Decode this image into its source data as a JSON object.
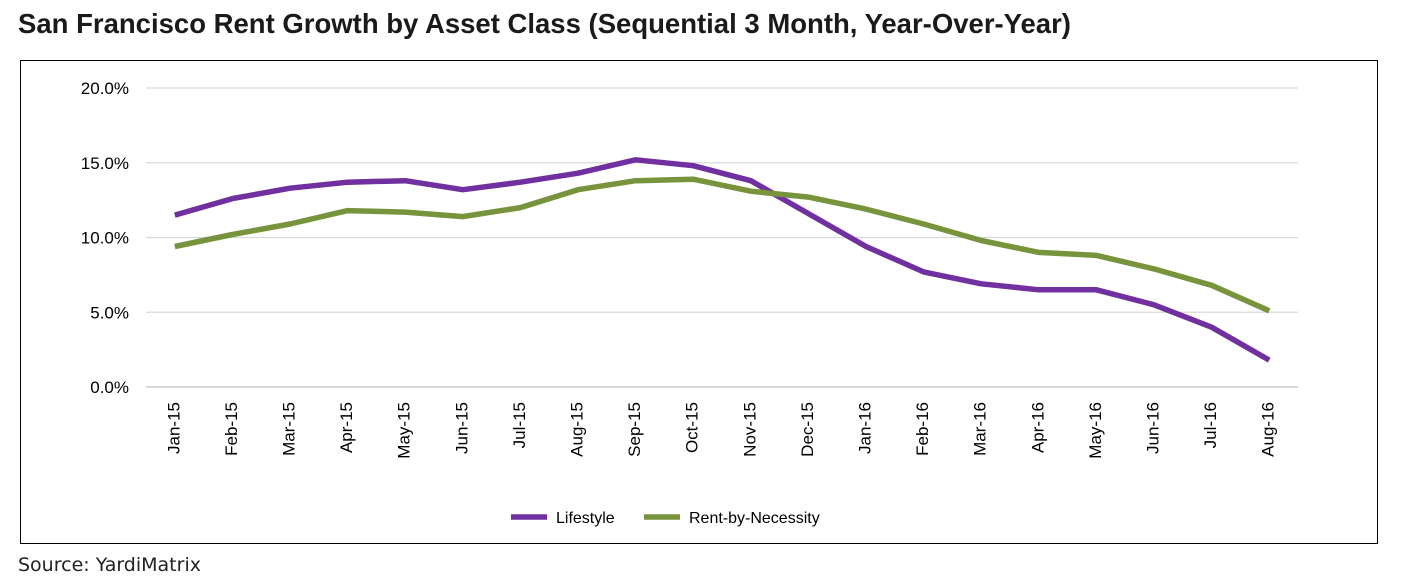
{
  "title": "San Francisco Rent Growth by Asset Class (Sequential 3 Month, Year-Over-Year)",
  "source": "Source: YardiMatrix",
  "colors": {
    "lifestyle": "#7030a0",
    "rent_by_necessity": "#77933c",
    "grid": "#d9d9d9",
    "frame": "#000000"
  },
  "chart_data": {
    "type": "line",
    "title": "San Francisco Rent Growth by Asset Class (Sequential 3 Month, Year-Over-Year)",
    "xlabel": "",
    "ylabel": "",
    "categories": [
      "Jan-15",
      "Feb-15",
      "Mar-15",
      "Apr-15",
      "May-15",
      "Jun-15",
      "Jul-15",
      "Aug-15",
      "Sep-15",
      "Oct-15",
      "Nov-15",
      "Dec-15",
      "Jan-16",
      "Feb-16",
      "Mar-16",
      "Apr-16",
      "May-16",
      "Jun-16",
      "Jul-16",
      "Aug-16"
    ],
    "ylim": [
      0,
      20
    ],
    "yticks": [
      0,
      5,
      10,
      15,
      20
    ],
    "ytick_labels": [
      "0.0%",
      "5.0%",
      "10.0%",
      "15.0%",
      "20.0%"
    ],
    "grid": true,
    "legend_position": "bottom-center",
    "series": [
      {
        "name": "Lifestyle",
        "color": "#7030a0",
        "values": [
          11.5,
          12.6,
          13.3,
          13.7,
          13.8,
          13.2,
          13.7,
          14.3,
          15.2,
          14.8,
          13.8,
          11.6,
          9.4,
          7.7,
          6.9,
          6.5,
          6.5,
          5.5,
          4.0,
          1.8
        ]
      },
      {
        "name": "Rent-by-Necessity",
        "color": "#77933c",
        "values": [
          9.4,
          10.2,
          10.9,
          11.8,
          11.7,
          11.4,
          12.0,
          13.2,
          13.8,
          13.9,
          13.1,
          12.7,
          11.9,
          10.9,
          9.8,
          9.0,
          8.8,
          7.9,
          6.8,
          5.1
        ]
      }
    ]
  }
}
